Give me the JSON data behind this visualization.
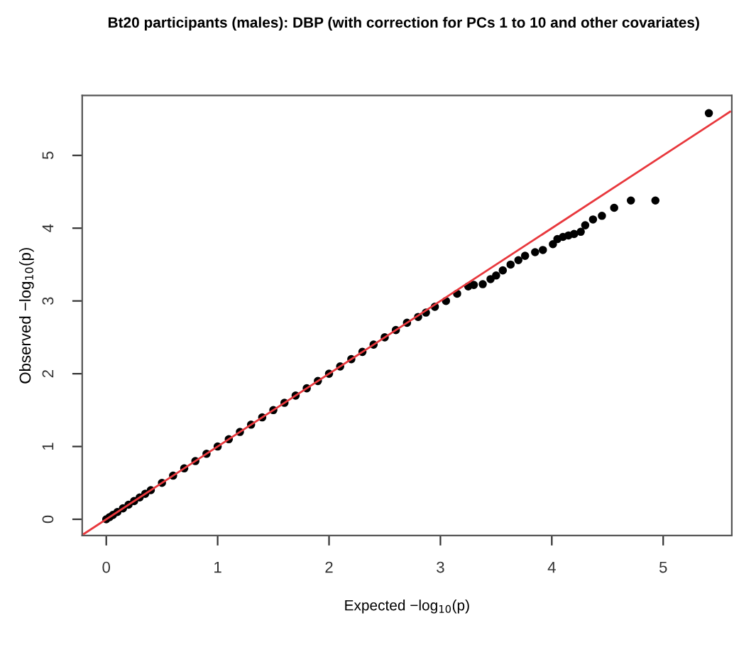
{
  "chart_data": {
    "type": "scatter",
    "title": "Bt20 participants (males): DBP (with correction for PCs 1 to 10 and other covariates)",
    "xlabel": "Expected −log$_{10}$(p)",
    "ylabel": "Observed −log$_{10}$(p)",
    "xlim": [
      -0.216,
      5.616
    ],
    "ylim": [
      -0.224,
      5.824
    ],
    "xticks": [
      0,
      1,
      2,
      3,
      4,
      5
    ],
    "yticks": [
      0,
      1,
      2,
      3,
      4,
      5
    ],
    "grid": false,
    "legend": false,
    "marker": "circle",
    "series": [
      {
        "color": "#000000",
        "x": [
          0.0,
          0.03,
          0.06,
          0.1,
          0.15,
          0.2,
          0.25,
          0.3,
          0.35,
          0.4,
          0.5,
          0.6,
          0.7,
          0.8,
          0.9,
          1.0,
          1.1,
          1.2,
          1.3,
          1.4,
          1.5,
          1.6,
          1.7,
          1.8,
          1.9,
          2.0,
          2.1,
          2.2,
          2.3,
          2.4,
          2.5,
          2.6,
          2.7,
          2.8,
          2.87,
          2.95,
          3.05,
          3.15,
          3.25,
          3.3,
          3.38,
          3.45,
          3.5,
          3.56,
          3.63,
          3.7,
          3.76,
          3.85,
          3.92,
          4.01,
          4.05,
          4.1,
          4.15,
          4.2,
          4.26,
          4.3,
          4.37,
          4.45,
          4.56,
          4.71,
          4.93,
          5.41
        ],
        "values": [
          0.0,
          0.03,
          0.06,
          0.1,
          0.15,
          0.2,
          0.25,
          0.3,
          0.35,
          0.4,
          0.5,
          0.6,
          0.7,
          0.8,
          0.9,
          1.0,
          1.1,
          1.2,
          1.3,
          1.4,
          1.5,
          1.6,
          1.7,
          1.8,
          1.9,
          2.0,
          2.1,
          2.2,
          2.3,
          2.4,
          2.5,
          2.6,
          2.7,
          2.78,
          2.84,
          2.92,
          3.0,
          3.1,
          3.2,
          3.22,
          3.23,
          3.3,
          3.35,
          3.42,
          3.5,
          3.56,
          3.62,
          3.67,
          3.7,
          3.78,
          3.85,
          3.88,
          3.9,
          3.92,
          3.95,
          4.04,
          4.12,
          4.17,
          4.28,
          4.38,
          4.38,
          5.58
        ]
      },
      {
        "type": "line",
        "color": "#e8383d",
        "line_style": "solid",
        "marker": "none",
        "x": [
          -0.2,
          5.6
        ],
        "values": [
          -0.2,
          5.6
        ]
      }
    ]
  }
}
